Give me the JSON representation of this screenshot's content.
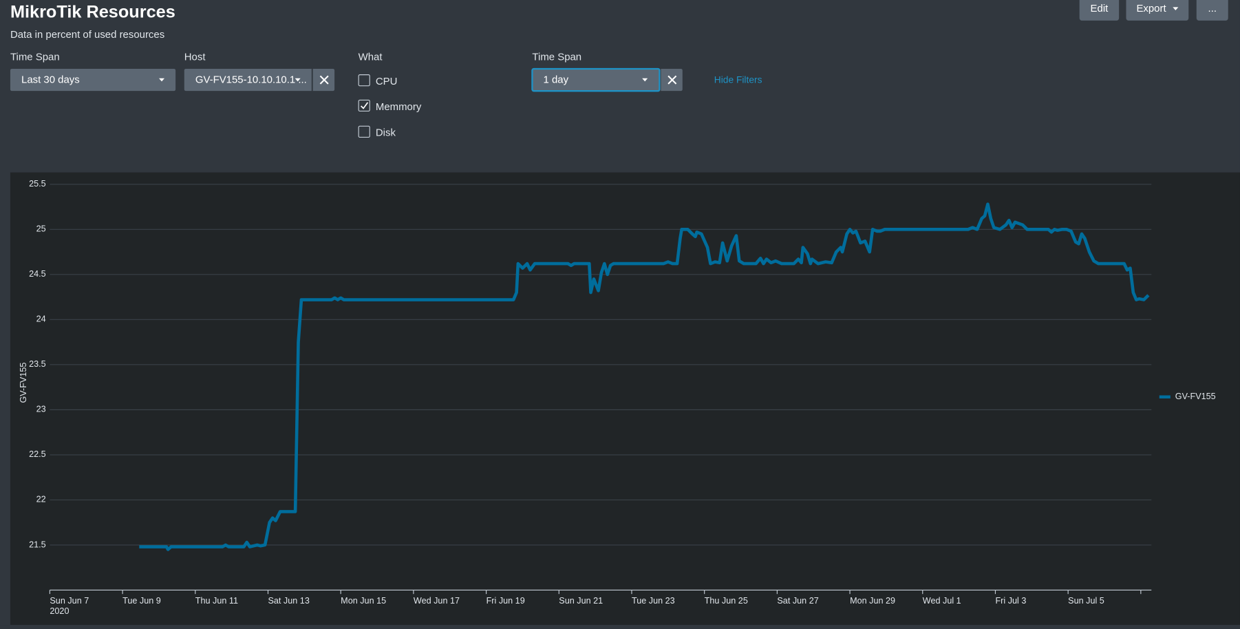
{
  "header": {
    "title": "MikroTik Resources",
    "subtitle": "Data in percent of used resources",
    "buttons": [
      "Edit",
      "Export",
      "..."
    ]
  },
  "filters": [
    {
      "label": "Time Span",
      "value": "Last 30 days"
    },
    {
      "label": "Host",
      "value": "GV-FV155-10.10.10.1 ..."
    },
    {
      "label": "What",
      "options": [
        {
          "label": "CPU",
          "checked": false
        },
        {
          "label": "Memmory",
          "checked": true
        },
        {
          "label": "Disk",
          "checked": false
        }
      ]
    },
    {
      "label": "Time Span",
      "value": "1 day"
    }
  ],
  "hide_filters": "Hide Filters",
  "chart_data": {
    "type": "line",
    "ylabel": "GV-FV155",
    "legend": "right",
    "grid": true,
    "ylim": [
      21,
      25.6
    ],
    "yticks": [
      21.5,
      22,
      22.5,
      23,
      23.5,
      24,
      24.5,
      25,
      25.5
    ],
    "xlim": [
      "2020-06-07T00:00",
      "2020-07-07T07:00"
    ],
    "xticks": [
      {
        "value": "2020-06-07T00:00",
        "label": "Sun Jun 7"
      },
      {
        "value": "2020-06-09T00:00",
        "label": "Tue Jun 9"
      },
      {
        "value": "2020-06-11T00:00",
        "label": "Thu Jun 11"
      },
      {
        "value": "2020-06-13T00:00",
        "label": "Sat Jun 13"
      },
      {
        "value": "2020-06-15T00:00",
        "label": "Mon Jun 15"
      },
      {
        "value": "2020-06-17T00:00",
        "label": "Wed Jun 17"
      },
      {
        "value": "2020-06-19T00:00",
        "label": "Fri Jun 19"
      },
      {
        "value": "2020-06-21T00:00",
        "label": "Sun Jun 21"
      },
      {
        "value": "2020-06-23T00:00",
        "label": "Tue Jun 23"
      },
      {
        "value": "2020-06-25T00:00",
        "label": "Thu Jun 25"
      },
      {
        "value": "2020-06-27T00:00",
        "label": "Sat Jun 27"
      },
      {
        "value": "2020-06-29T00:00",
        "label": "Mon Jun 29"
      },
      {
        "value": "2020-07-01T00:00",
        "label": "Wed Jul 1"
      },
      {
        "value": "2020-07-03T00:00",
        "label": "Fri Jul 3"
      },
      {
        "value": "2020-07-05T00:00",
        "label": "Sun Jul 5"
      },
      {
        "value": "2020-07-07T00:00",
        "label": null
      }
    ],
    "year_label": "2020",
    "x": [
      "2020-06-09T11:00",
      "2020-06-10T05:00",
      "2020-06-10T06:00",
      "2020-06-10T08:00",
      "2020-06-11T18:00",
      "2020-06-11T20:00",
      "2020-06-11T22:00",
      "2020-06-12T08:00",
      "2020-06-12T10:00",
      "2020-06-12T12:00",
      "2020-06-12T17:00",
      "2020-06-12T19:00",
      "2020-06-12T22:00",
      "2020-06-13T01:00",
      "2020-06-13T03:00",
      "2020-06-13T05:00",
      "2020-06-13T08:00",
      "2020-06-13T18:00",
      "2020-06-13T20:00",
      "2020-06-13T22:00",
      "2020-06-14T18:00",
      "2020-06-14T20:00",
      "2020-06-14T22:00",
      "2020-06-15T00:00",
      "2020-06-15T02:00",
      "2020-06-19T18:00",
      "2020-06-19T20:00",
      "2020-06-19T21:00",
      "2020-06-20T00:00",
      "2020-06-20T03:00",
      "2020-06-20T05:00",
      "2020-06-20T08:00",
      "2020-06-21T06:00",
      "2020-06-21T08:00",
      "2020-06-21T10:00",
      "2020-06-21T20:00",
      "2020-06-21T21:00",
      "2020-06-21T23:00",
      "2020-06-22T02:00",
      "2020-06-22T04:00",
      "2020-06-22T06:00",
      "2020-06-22T08:00",
      "2020-06-22T10:00",
      "2020-06-22T12:00",
      "2020-06-23T21:00",
      "2020-06-24T00:00",
      "2020-06-24T03:00",
      "2020-06-24T06:00",
      "2020-06-24T08:00",
      "2020-06-24T09:00",
      "2020-06-24T13:00",
      "2020-06-24T16:00",
      "2020-06-24T18:00",
      "2020-06-24T19:00",
      "2020-06-24T22:00",
      "2020-06-25T02:00",
      "2020-06-25T04:00",
      "2020-06-25T07:00",
      "2020-06-25T10:00",
      "2020-06-25T12:00",
      "2020-06-25T15:00",
      "2020-06-25T18:00",
      "2020-06-25T21:00",
      "2020-06-25T23:00",
      "2020-06-26T02:00",
      "2020-06-26T10:00",
      "2020-06-26T13:00",
      "2020-06-26T15:00",
      "2020-06-26T17:00",
      "2020-06-26T20:00",
      "2020-06-26T23:00",
      "2020-06-27T03:00",
      "2020-06-27T11:00",
      "2020-06-27T14:00",
      "2020-06-27T16:00",
      "2020-06-27T17:00",
      "2020-06-27T20:00",
      "2020-06-27T22:00",
      "2020-06-27T23:00",
      "2020-06-28T03:00",
      "2020-06-28T08:00",
      "2020-06-28T12:00",
      "2020-06-28T15:00",
      "2020-06-28T18:00",
      "2020-06-28T19:00",
      "2020-06-28T22:00",
      "2020-06-29T00:00",
      "2020-06-29T02:00",
      "2020-06-29T04:00",
      "2020-06-29T07:00",
      "2020-06-29T10:00",
      "2020-06-29T13:00",
      "2020-06-29T15:00",
      "2020-06-29T18:00",
      "2020-06-29T20:00",
      "2020-06-29T23:00",
      "2020-07-02T06:00",
      "2020-07-02T09:00",
      "2020-07-02T12:00",
      "2020-07-02T15:00",
      "2020-07-02T17:00",
      "2020-07-02T19:00",
      "2020-07-02T21:00",
      "2020-07-02T23:00",
      "2020-07-03T03:00",
      "2020-07-03T07:00",
      "2020-07-03T09:00",
      "2020-07-03T11:00",
      "2020-07-03T13:00",
      "2020-07-03T18:00",
      "2020-07-03T21:00",
      "2020-07-04T11:00",
      "2020-07-04T13:00",
      "2020-07-04T15:00",
      "2020-07-04T17:00",
      "2020-07-04T20:00",
      "2020-07-04T23:00",
      "2020-07-05T02:00",
      "2020-07-05T05:00",
      "2020-07-05T07:00",
      "2020-07-05T09:00",
      "2020-07-05T11:00",
      "2020-07-05T14:00",
      "2020-07-05T17:00",
      "2020-07-05T20:00",
      "2020-07-06T13:00",
      "2020-07-06T15:00",
      "2020-07-06T17:00",
      "2020-07-06T19:00",
      "2020-07-06T21:00",
      "2020-07-06T23:00",
      "2020-07-07T02:00",
      "2020-07-07T05:00"
    ],
    "series": [
      {
        "name": "GV-FV155",
        "color": "#006d9c",
        "values": [
          21.48,
          21.48,
          21.45,
          21.48,
          21.48,
          21.5,
          21.48,
          21.48,
          21.53,
          21.48,
          21.5,
          21.49,
          21.5,
          21.75,
          21.8,
          21.77,
          21.87,
          21.87,
          23.75,
          24.22,
          24.22,
          24.24,
          24.22,
          24.24,
          24.22,
          24.22,
          24.3,
          24.62,
          24.57,
          24.62,
          24.55,
          24.62,
          24.62,
          24.6,
          24.62,
          24.62,
          24.3,
          24.45,
          24.32,
          24.52,
          24.62,
          24.5,
          24.6,
          24.62,
          24.62,
          24.64,
          24.62,
          24.62,
          24.9,
          25.0,
          25.0,
          24.95,
          24.92,
          24.97,
          24.95,
          24.8,
          24.62,
          24.64,
          24.63,
          24.85,
          24.65,
          24.82,
          24.93,
          24.65,
          24.62,
          24.62,
          24.68,
          24.62,
          24.67,
          24.63,
          24.65,
          24.62,
          24.62,
          24.67,
          24.63,
          24.8,
          24.73,
          24.62,
          24.67,
          24.62,
          24.64,
          24.63,
          24.75,
          24.8,
          24.75,
          24.95,
          25.0,
          24.96,
          24.98,
          24.85,
          24.87,
          24.75,
          25.0,
          24.98,
          24.98,
          25.0,
          25.0,
          25.02,
          25.0,
          25.12,
          25.15,
          25.28,
          25.12,
          25.02,
          25.0,
          25.05,
          25.1,
          25.02,
          25.08,
          25.05,
          25.0,
          25.0,
          24.97,
          25.0,
          24.99,
          25.0,
          25.0,
          24.98,
          24.86,
          24.84,
          24.95,
          24.9,
          24.75,
          24.65,
          24.62,
          24.62,
          24.55,
          24.57,
          24.3,
          24.22,
          24.23,
          24.22,
          24.27
        ]
      }
    ]
  }
}
